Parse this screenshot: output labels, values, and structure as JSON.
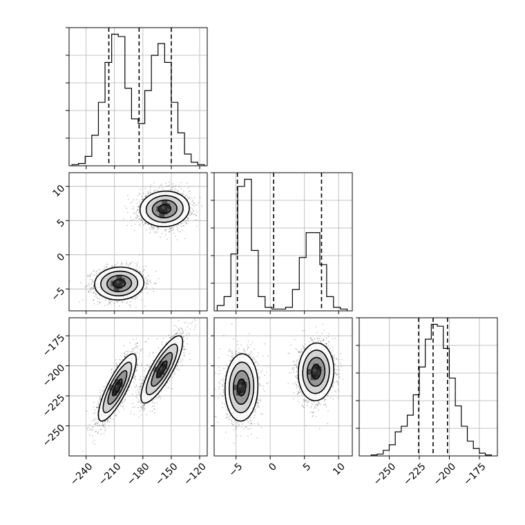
{
  "chart_data": {
    "type": "corner",
    "parameters": [
      {
        "index": 0,
        "range": [
          -258,
          -112
        ],
        "ticks": [
          -240,
          -210,
          -180,
          -150,
          -120
        ],
        "tick_labels": [
          "−240",
          "−210",
          "−180",
          "−150",
          "−120"
        ]
      },
      {
        "index": 1,
        "range": [
          -8.2,
          12.0
        ],
        "ticks": [
          -5,
          0,
          5,
          10
        ],
        "tick_labels": [
          "−5",
          "0",
          "5",
          "10"
        ]
      },
      {
        "index": 2,
        "range": [
          -275,
          -160
        ],
        "ticks": [
          -250,
          -225,
          -200,
          -175
        ],
        "tick_labels": [
          "−250",
          "−225",
          "−200",
          "−175"
        ]
      }
    ],
    "histograms": [
      {
        "param": 0,
        "bin_edges": [
          -255,
          -248,
          -241,
          -234,
          -227,
          -220,
          -213,
          -206,
          -199,
          -192,
          -185,
          -178,
          -171,
          -164,
          -157,
          -150,
          -143,
          -136,
          -129,
          -122,
          -115
        ],
        "counts": [
          0.5,
          1,
          4,
          13,
          27,
          44,
          56,
          55,
          33,
          20,
          18,
          32,
          47,
          52,
          44,
          27,
          14,
          5,
          1.5,
          0.5
        ],
        "quantile_lines": [
          -216,
          -184,
          -150
        ]
      },
      {
        "param": 1,
        "bin_edges": [
          -7.75,
          -6.75,
          -5.75,
          -4.75,
          -3.75,
          -2.75,
          -1.75,
          -0.75,
          0.25,
          1.25,
          2.25,
          3.25,
          4.25,
          5.25,
          6.25,
          7.25,
          8.25,
          9.25,
          10.25,
          11.25
        ],
        "counts": [
          1.5,
          4,
          16,
          35,
          37,
          17,
          4,
          1,
          0.5,
          0.5,
          1,
          6,
          15,
          22,
          22,
          13,
          4,
          1,
          0.5
        ],
        "quantile_lines": [
          -4.8,
          0.5,
          7.5
        ]
      },
      {
        "param": 2,
        "bin_edges": [
          -265,
          -260,
          -255,
          -250,
          -245,
          -240,
          -235,
          -230,
          -225,
          -220,
          -215,
          -210,
          -205,
          -200,
          -195,
          -190,
          -185,
          -180,
          -175,
          -170,
          -165
        ],
        "counts": [
          0.5,
          1,
          3,
          6,
          13,
          16,
          22,
          33,
          48,
          63,
          71,
          70,
          58,
          42,
          27,
          16,
          8,
          4,
          1.5,
          0.5
        ],
        "quantile_lines": [
          -225.5,
          -213.5,
          -201.5
        ]
      }
    ],
    "scatter_panels": [
      {
        "x_param": 0,
        "y_param": 1,
        "clusters": [
          {
            "center": [
              -205,
              -4.2
            ],
            "sd": [
              13,
              1.2
            ],
            "rho": 0.05
          },
          {
            "center": [
              -157,
              6.7
            ],
            "sd": [
              13,
              1.3
            ],
            "rho": 0.05
          }
        ]
      },
      {
        "x_param": 0,
        "y_param": 2,
        "clusters": [
          {
            "center": [
              -207,
              -218
            ],
            "sd": [
              10,
              14
            ],
            "rho": 0.82
          },
          {
            "center": [
              -160,
              -203
            ],
            "sd": [
              11,
              14
            ],
            "rho": 0.82
          }
        ]
      },
      {
        "x_param": 1,
        "y_param": 2,
        "clusters": [
          {
            "center": [
              -4.2,
              -218
            ],
            "sd": [
              1.2,
              14
            ],
            "rho": 0.05
          },
          {
            "center": [
              6.7,
              -205
            ],
            "sd": [
              1.3,
              12
            ],
            "rho": 0.05
          }
        ]
      }
    ],
    "contour_levels_sigma": [
      0.5,
      1.0,
      1.5,
      2.0
    ],
    "grid": true,
    "legend": "none"
  }
}
